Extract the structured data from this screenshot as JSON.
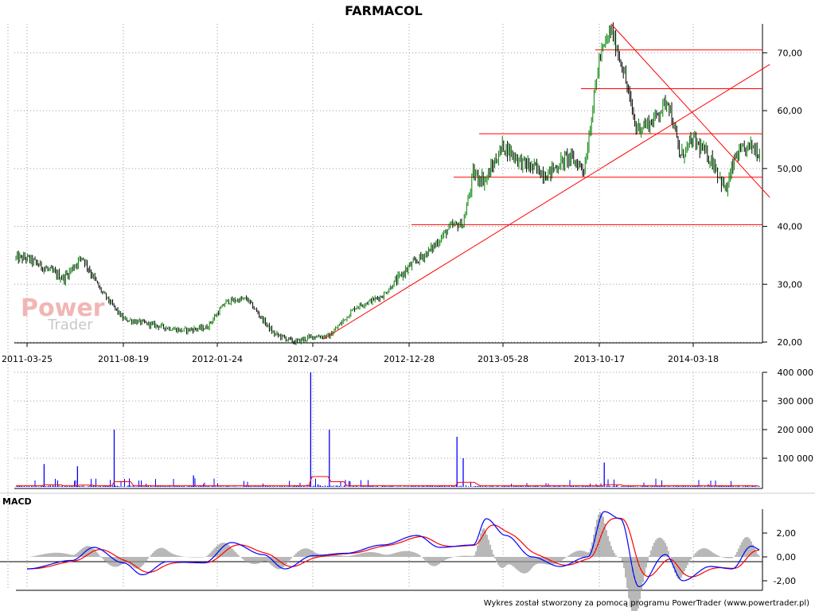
{
  "chart_data": [
    {
      "type": "candlestick",
      "title": "FARMACOL",
      "x_tick_labels": [
        "2011-03-25",
        "2011-08-19",
        "2012-01-24",
        "2012-07-24",
        "2012-12-28",
        "2013-05-28",
        "2013-10-17",
        "2014-03-18"
      ],
      "y_tick_labels": [
        "20,00",
        "30,00",
        "40,00",
        "50,00",
        "60,00",
        "70,00"
      ],
      "ylim": [
        20,
        75
      ],
      "y_ticks": [
        20,
        30,
        40,
        50,
        60,
        70
      ],
      "close_path": [
        {
          "x": "2011-03-25",
          "y": 34.5
        },
        {
          "x": "2011-05-20",
          "y": 31
        },
        {
          "x": "2011-06-17",
          "y": 34.8
        },
        {
          "x": "2011-07-15",
          "y": 29
        },
        {
          "x": "2011-08-19",
          "y": 24
        },
        {
          "x": "2011-10-07",
          "y": 23
        },
        {
          "x": "2011-11-25",
          "y": 22
        },
        {
          "x": "2012-01-06",
          "y": 22.5
        },
        {
          "x": "2012-02-10",
          "y": 27
        },
        {
          "x": "2012-03-20",
          "y": 27.5
        },
        {
          "x": "2012-05-10",
          "y": 21.5
        },
        {
          "x": "2012-06-20",
          "y": 20
        },
        {
          "x": "2012-07-24",
          "y": 21
        },
        {
          "x": "2012-08-20",
          "y": 21
        },
        {
          "x": "2012-10-01",
          "y": 26
        },
        {
          "x": "2012-11-15",
          "y": 28
        },
        {
          "x": "2012-12-28",
          "y": 33
        },
        {
          "x": "2013-02-01",
          "y": 36
        },
        {
          "x": "2013-03-05",
          "y": 40
        },
        {
          "x": "2013-03-25",
          "y": 40.5
        },
        {
          "x": "2013-04-10",
          "y": 49
        },
        {
          "x": "2013-04-30",
          "y": 48
        },
        {
          "x": "2013-05-28",
          "y": 54
        },
        {
          "x": "2013-06-25",
          "y": 51
        },
        {
          "x": "2013-08-01",
          "y": 49
        },
        {
          "x": "2013-09-01",
          "y": 52
        },
        {
          "x": "2013-09-25",
          "y": 50
        },
        {
          "x": "2013-10-17",
          "y": 69
        },
        {
          "x": "2013-11-05",
          "y": 74
        },
        {
          "x": "2013-11-25",
          "y": 67
        },
        {
          "x": "2013-12-15",
          "y": 57
        },
        {
          "x": "2014-01-10",
          "y": 58
        },
        {
          "x": "2014-02-05",
          "y": 62
        },
        {
          "x": "2014-02-25",
          "y": 52
        },
        {
          "x": "2014-03-18",
          "y": 55
        },
        {
          "x": "2014-04-20",
          "y": 51
        },
        {
          "x": "2014-05-10",
          "y": 46
        },
        {
          "x": "2014-05-25",
          "y": 52
        },
        {
          "x": "2014-06-20",
          "y": 54
        },
        {
          "x": "2014-07-05",
          "y": 52.5
        }
      ],
      "horizontal_levels": [
        40.3,
        48.5,
        56,
        63.8,
        70.5
      ],
      "trend_lines": [
        {
          "x1": "2012-08-10",
          "y1": 20.5,
          "x2": "2014-07-20",
          "y2": 68
        },
        {
          "x1": "2013-11-05",
          "y1": 75,
          "x2": "2014-07-20",
          "y2": 45
        }
      ],
      "series_colors": {
        "up": "#008000",
        "down": "#000000",
        "levels": "#ff0000"
      }
    },
    {
      "type": "bar",
      "y_tick_labels": [
        "100 000",
        "200 000",
        "300 000",
        "400 000"
      ],
      "ylim": [
        0,
        400000
      ],
      "y_ticks": [
        100000,
        200000,
        300000,
        400000
      ],
      "spikes": [
        {
          "x": "2011-04-20",
          "value": 80000
        },
        {
          "x": "2011-06-10",
          "value": 72000
        },
        {
          "x": "2011-08-05",
          "value": 200000
        },
        {
          "x": "2011-12-15",
          "value": 40000
        },
        {
          "x": "2012-07-20",
          "value": 400000
        },
        {
          "x": "2012-08-20",
          "value": 200000
        },
        {
          "x": "2013-03-15",
          "value": 175000
        },
        {
          "x": "2013-03-25",
          "value": 100000
        },
        {
          "x": "2013-10-25",
          "value": 85000
        }
      ],
      "bar_color": "#0000ff",
      "average_color": "#ff0000"
    },
    {
      "type": "line",
      "title": "MACD",
      "y_tick_labels": [
        "-2,00",
        "0,00",
        "2,00"
      ],
      "ylim": [
        -2.8,
        4
      ],
      "y_ticks": [
        -2,
        0,
        2
      ],
      "macd": [
        {
          "x": "2011-03-25",
          "y": -1.0
        },
        {
          "x": "2011-06-01",
          "y": -0.3
        },
        {
          "x": "2011-07-05",
          "y": 0.8
        },
        {
          "x": "2011-08-19",
          "y": -0.5
        },
        {
          "x": "2011-09-20",
          "y": -1.5
        },
        {
          "x": "2011-11-01",
          "y": -0.4
        },
        {
          "x": "2012-01-01",
          "y": -0.5
        },
        {
          "x": "2012-02-20",
          "y": 1.2
        },
        {
          "x": "2012-04-20",
          "y": 0.2
        },
        {
          "x": "2012-06-01",
          "y": -1.0
        },
        {
          "x": "2012-07-24",
          "y": 0.1
        },
        {
          "x": "2012-09-15",
          "y": 0.3
        },
        {
          "x": "2012-11-15",
          "y": 1.0
        },
        {
          "x": "2013-01-10",
          "y": 1.8
        },
        {
          "x": "2013-02-15",
          "y": 0.8
        },
        {
          "x": "2013-04-10",
          "y": 1.0
        },
        {
          "x": "2013-05-01",
          "y": 3.2
        },
        {
          "x": "2013-06-01",
          "y": 1.8
        },
        {
          "x": "2013-07-10",
          "y": 0.0
        },
        {
          "x": "2013-08-20",
          "y": -0.8
        },
        {
          "x": "2013-09-30",
          "y": 0.0
        },
        {
          "x": "2013-10-25",
          "y": 3.8
        },
        {
          "x": "2013-11-20",
          "y": 3.2
        },
        {
          "x": "2013-12-20",
          "y": -2.5
        },
        {
          "x": "2014-02-01",
          "y": 0.2
        },
        {
          "x": "2014-03-01",
          "y": -2.0
        },
        {
          "x": "2014-04-15",
          "y": -0.8
        },
        {
          "x": "2014-05-20",
          "y": -1.0
        },
        {
          "x": "2014-06-20",
          "y": 0.9
        },
        {
          "x": "2014-07-05",
          "y": 0.6
        }
      ],
      "macd_color": "#0000ff",
      "signal_color": "#ff0000",
      "histogram_color": "#999999"
    }
  ],
  "footer_text": "Wykres został stworzony za pomocą programu PowerTrader (www.powertrader.pl)",
  "logo": {
    "line1": "Power",
    "line2": "Trader"
  }
}
